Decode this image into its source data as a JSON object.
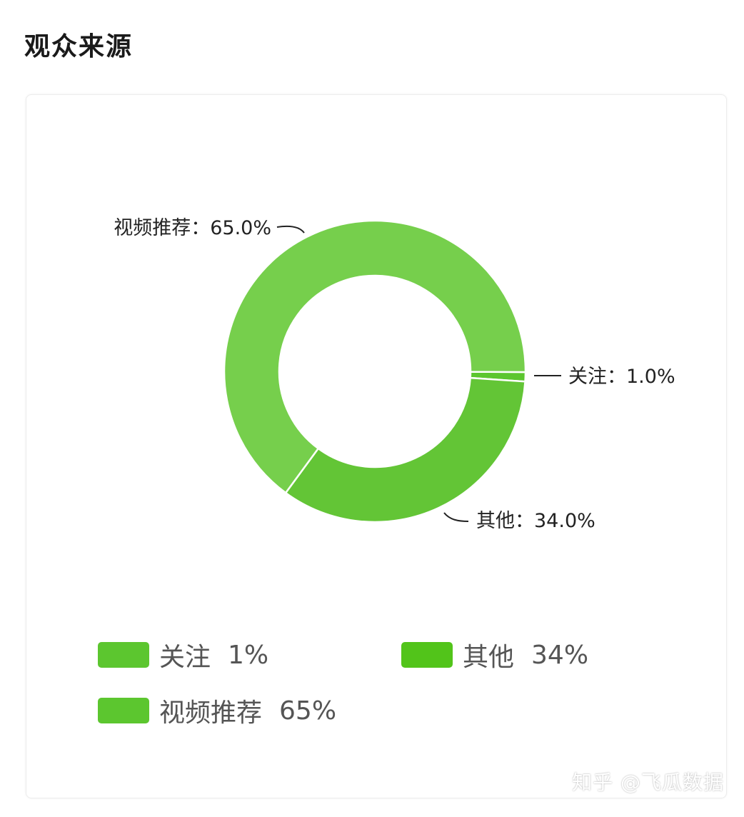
{
  "page": {
    "title": "观众来源",
    "watermark": "知乎 @飞瓜数据"
  },
  "chart_data": {
    "type": "pie",
    "donut": true,
    "slices": [
      {
        "name": "视频推荐",
        "value": 65.0,
        "label": "视频推荐：65.0%",
        "color": "#76cf4c"
      },
      {
        "name": "关注",
        "value": 1.0,
        "label": "关注：1.0%",
        "color": "#5cc62f"
      },
      {
        "name": "其他",
        "value": 34.0,
        "label": "其他：34.0%",
        "color": "#63c536"
      }
    ],
    "legend": [
      {
        "name": "关注",
        "pct": "1%",
        "color": "#5cc62f"
      },
      {
        "name": "其他",
        "pct": "34%",
        "color": "#52c41a"
      },
      {
        "name": "视频推荐",
        "pct": "65%",
        "color": "#5cc62f"
      }
    ],
    "legend_position": "bottom"
  }
}
